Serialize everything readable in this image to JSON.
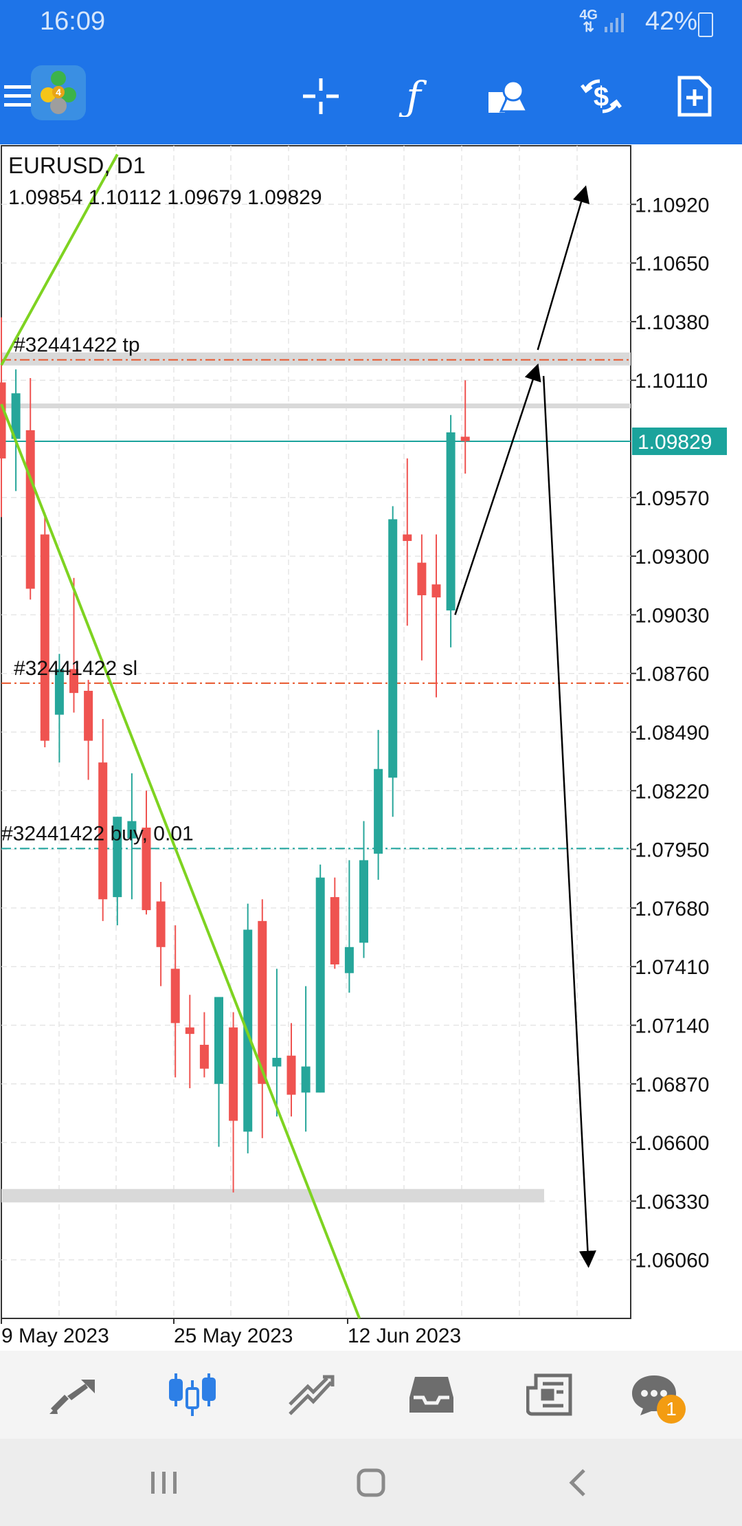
{
  "status_bar": {
    "time": "16:09",
    "network": "4G",
    "battery": "42%"
  },
  "toolbar": {
    "icons": [
      "menu-icon",
      "metatrader-logo",
      "crosshair-icon",
      "function-icon",
      "objects-icon",
      "trade-icon",
      "add-order-icon"
    ]
  },
  "chart": {
    "symbol_timeframe": "EURUSD, D1",
    "ohlc": "1.09854 1.10112 1.09679 1.09829",
    "current_price": "1.09829",
    "ylim": [
      1.0579,
      1.1119
    ],
    "price_ticks": [
      "1.10920",
      "1.10650",
      "1.10380",
      "1.10110",
      "1.09570",
      "1.09300",
      "1.09030",
      "1.08760",
      "1.08490",
      "1.08220",
      "1.07950",
      "1.07680",
      "1.07410",
      "1.07140",
      "1.06870",
      "1.06600",
      "1.06330",
      "1.06060"
    ],
    "date_labels": [
      "9 May 2023",
      "25 May 2023",
      "12 Jun 2023"
    ],
    "order_lines": [
      {
        "label": "#32441422 tp",
        "price": 1.10204,
        "color": "#E8552B"
      },
      {
        "label": "#32441422 sl",
        "price": 1.08715,
        "color": "#E8552B"
      },
      {
        "label": "#32441422 buy, 0.01",
        "price": 1.07954,
        "color": "#1BA39C"
      }
    ],
    "colors": {
      "bull": "#26A69A",
      "bear": "#EF5350",
      "trendline": "#7ED321",
      "grid": "#E6E6E6",
      "axis_text": "#111111",
      "price_tag": "#1BA39C",
      "zone": "#D9D9D9"
    }
  },
  "chart_data": {
    "type": "candlestick",
    "title": "EURUSD, D1",
    "ylim": [
      1.0579,
      1.1119
    ],
    "candles": [
      {
        "o": 1.101,
        "h": 1.104,
        "l": 1.0948,
        "c": 1.0975
      },
      {
        "o": 1.0984,
        "h": 1.1016,
        "l": 1.096,
        "c": 1.1005
      },
      {
        "o": 1.0988,
        "h": 1.1012,
        "l": 1.091,
        "c": 1.0915
      },
      {
        "o": 1.094,
        "h": 1.095,
        "l": 1.0842,
        "c": 1.0845
      },
      {
        "o": 1.0857,
        "h": 1.0885,
        "l": 1.0835,
        "c": 1.0878
      },
      {
        "o": 1.0878,
        "h": 1.092,
        "l": 1.0858,
        "c": 1.0867
      },
      {
        "o": 1.0868,
        "h": 1.0873,
        "l": 1.0827,
        "c": 1.0845
      },
      {
        "o": 1.0835,
        "h": 1.0855,
        "l": 1.0762,
        "c": 1.0772
      },
      {
        "o": 1.0773,
        "h": 1.081,
        "l": 1.076,
        "c": 1.081
      },
      {
        "o": 1.08,
        "h": 1.083,
        "l": 1.0772,
        "c": 1.0808
      },
      {
        "o": 1.0805,
        "h": 1.0822,
        "l": 1.0765,
        "c": 1.0767
      },
      {
        "o": 1.0771,
        "h": 1.078,
        "l": 1.0732,
        "c": 1.075
      },
      {
        "o": 1.074,
        "h": 1.076,
        "l": 1.069,
        "c": 1.0715
      },
      {
        "o": 1.0713,
        "h": 1.0728,
        "l": 1.0685,
        "c": 1.071
      },
      {
        "o": 1.0705,
        "h": 1.072,
        "l": 1.069,
        "c": 1.0694
      },
      {
        "o": 1.0687,
        "h": 1.0725,
        "l": 1.0658,
        "c": 1.0727
      },
      {
        "o": 1.0713,
        "h": 1.072,
        "l": 1.0637,
        "c": 1.067
      },
      {
        "o": 1.0665,
        "h": 1.077,
        "l": 1.0655,
        "c": 1.0758
      },
      {
        "o": 1.0762,
        "h": 1.0772,
        "l": 1.0662,
        "c": 1.0687
      },
      {
        "o": 1.0695,
        "h": 1.074,
        "l": 1.0672,
        "c": 1.0699
      },
      {
        "o": 1.07,
        "h": 1.0715,
        "l": 1.0672,
        "c": 1.0682
      },
      {
        "o": 1.0683,
        "h": 1.0732,
        "l": 1.0665,
        "c": 1.0695
      },
      {
        "o": 1.0683,
        "h": 1.0788,
        "l": 1.0683,
        "c": 1.0782
      },
      {
        "o": 1.0773,
        "h": 1.0782,
        "l": 1.074,
        "c": 1.0742
      },
      {
        "o": 1.0738,
        "h": 1.079,
        "l": 1.0729,
        "c": 1.075
      },
      {
        "o": 1.0752,
        "h": 1.0808,
        "l": 1.0745,
        "c": 1.079
      },
      {
        "o": 1.0793,
        "h": 1.085,
        "l": 1.0781,
        "c": 1.0832
      },
      {
        "o": 1.0828,
        "h": 1.0953,
        "l": 1.081,
        "c": 1.0947
      },
      {
        "o": 1.094,
        "h": 1.0975,
        "l": 1.0898,
        "c": 1.0937
      },
      {
        "o": 1.0927,
        "h": 1.094,
        "l": 1.0882,
        "c": 1.0912
      },
      {
        "o": 1.0917,
        "h": 1.094,
        "l": 1.0865,
        "c": 1.0911
      },
      {
        "o": 1.0905,
        "h": 1.0995,
        "l": 1.0888,
        "c": 1.0987
      },
      {
        "o": 1.0985,
        "h": 1.1011,
        "l": 1.0968,
        "c": 1.0983
      }
    ],
    "horizontal_lines": [
      1.10204,
      1.08715,
      1.07954
    ],
    "current_price": 1.09829,
    "y_ticks": [
      1.1092,
      1.1065,
      1.1038,
      1.1011,
      1.0957,
      1.093,
      1.0903,
      1.0876,
      1.0849,
      1.0822,
      1.0795,
      1.0768,
      1.0741,
      1.0714,
      1.0687,
      1.066,
      1.0633,
      1.0606
    ],
    "x_labels": [
      "9 May 2023",
      "25 May 2023",
      "12 Jun 2023"
    ],
    "zones": [
      {
        "from": 1.10238,
        "to": 1.10178
      },
      {
        "from": 1.10003,
        "to": 1.09981
      },
      {
        "from": 1.06386,
        "to": 1.06324
      }
    ],
    "annotations": [
      {
        "type": "trendline",
        "from": [
          0,
          1.1018
        ],
        "to": [
          8,
          1.1115
        ]
      },
      {
        "type": "trendline",
        "from": [
          0,
          1.1
        ],
        "to": [
          24.7,
          1.0579
        ]
      },
      {
        "type": "arrow",
        "from": [
          31.3,
          1.0903
        ],
        "to": [
          37.0,
          1.1018
        ]
      },
      {
        "type": "arrow",
        "from": [
          37.0,
          1.1025
        ],
        "to": [
          40.3,
          1.11
        ]
      },
      {
        "type": "arrow",
        "from": [
          37.4,
          1.1013
        ],
        "to": [
          40.5,
          1.0603
        ]
      }
    ]
  },
  "bottom_nav": {
    "items": [
      "quotes-icon",
      "chart-icon",
      "trade-icon",
      "history-icon",
      "news-icon",
      "messages-icon"
    ],
    "messages_badge": "1"
  }
}
